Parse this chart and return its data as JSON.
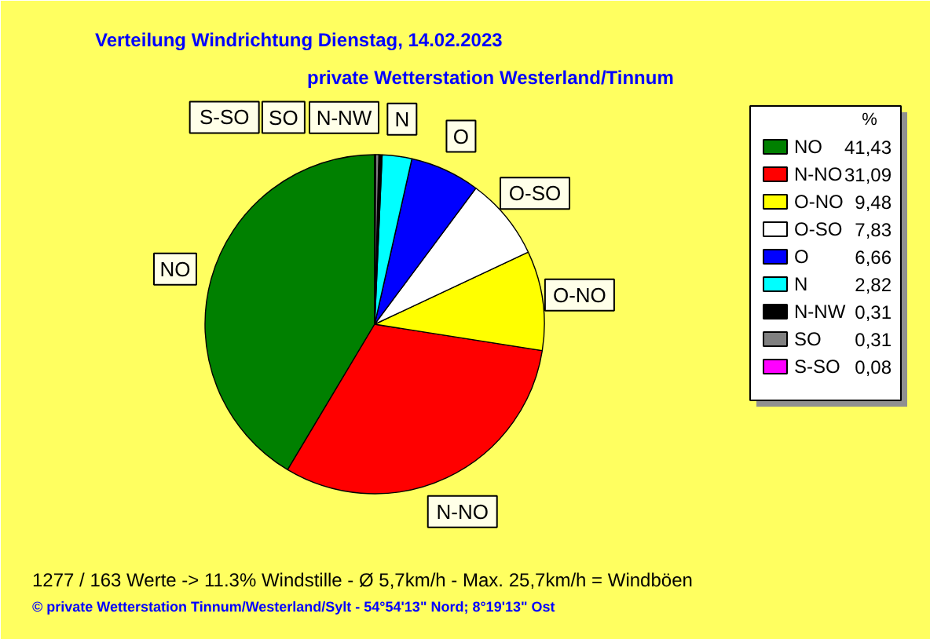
{
  "chart_data": {
    "type": "pie",
    "title": "Verteilung Windrichtung   Dienstag, 14.02.2023",
    "subtitle": "private Wetterstation Westerland/Tinnum",
    "categories": [
      "NO",
      "N-NO",
      "O-NO",
      "O-SO",
      "O",
      "N",
      "N-NW",
      "SO",
      "S-SO"
    ],
    "values": [
      41.43,
      31.09,
      9.48,
      7.83,
      6.66,
      2.82,
      0.31,
      0.31,
      0.08
    ],
    "colors": [
      "#008000",
      "#ff0000",
      "#ffff00",
      "#ffffff",
      "#0000ff",
      "#00ffff",
      "#000000",
      "#808080",
      "#ff00ff"
    ],
    "value_labels": [
      "41,43",
      "31,09",
      "9,48",
      "7,83",
      "6,66",
      "2,82",
      "0,31",
      "0,31",
      "0,08"
    ],
    "legend": "right",
    "legend_title": "%",
    "annotations": [
      "1277 / 163 Werte  -> 11.3% Windstille   -   Ø 5,7km/h  -  Max. 25,7km/h = Windböen",
      "© private Wetterstation Tinnum/Westerland/Sylt   -   54°54'13\" Nord; 8°19'13\" Ost"
    ]
  }
}
